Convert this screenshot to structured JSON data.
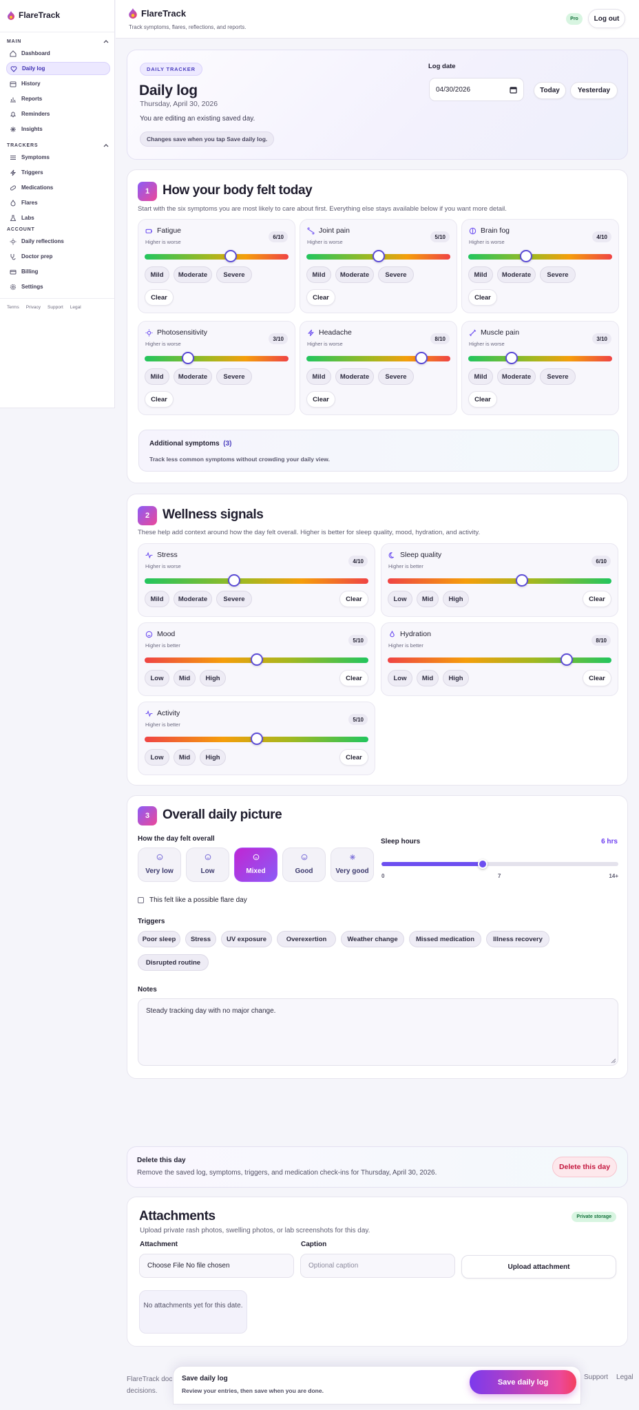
{
  "app": {
    "name": "FlareTrack",
    "tagline": "Track symptoms, flares, reflections, and reports.",
    "plan_badge": "Pro",
    "logout_label": "Log out"
  },
  "sidebar": {
    "sections": [
      {
        "label": "MAIN",
        "items": [
          {
            "label": "Dashboard",
            "icon": "home-icon"
          },
          {
            "label": "Daily log",
            "icon": "heart-icon",
            "active": true
          },
          {
            "label": "History",
            "icon": "calendar-icon"
          },
          {
            "label": "Reports",
            "icon": "chart-icon"
          },
          {
            "label": "Reminders",
            "icon": "bell-icon"
          },
          {
            "label": "Insights",
            "icon": "sparkle-icon"
          }
        ]
      },
      {
        "label": "TRACKERS",
        "items": [
          {
            "label": "Symptoms",
            "icon": "list-icon"
          },
          {
            "label": "Triggers",
            "icon": "bolt-icon"
          },
          {
            "label": "Medications",
            "icon": "pill-icon"
          },
          {
            "label": "Flares",
            "icon": "flame-icon"
          },
          {
            "label": "Labs",
            "icon": "flask-icon"
          }
        ]
      },
      {
        "label": "ACCOUNT",
        "items": [
          {
            "label": "Daily reflections",
            "icon": "sun-icon"
          },
          {
            "label": "Doctor prep",
            "icon": "stethoscope-icon"
          },
          {
            "label": "Billing",
            "icon": "card-icon"
          },
          {
            "label": "Settings",
            "icon": "gear-icon"
          }
        ]
      }
    ],
    "footer_links": [
      "Terms",
      "Privacy",
      "Support",
      "Legal"
    ]
  },
  "hero": {
    "tag": "DAILY TRACKER",
    "title": "Daily log",
    "date": "Thursday, April 30, 2026",
    "editing": "You are editing an existing saved day.",
    "note": "Changes save when you tap Save daily log.",
    "log_date_label": "Log date",
    "log_date_value": "04/30/2026",
    "today_label": "Today",
    "yesterday_label": "Yesterday"
  },
  "section1": {
    "num": "1",
    "title": "How your body felt today",
    "desc": "Start with the six symptoms you are most likely to care about first. Everything else stays available below if you want more detail.",
    "symptoms": [
      {
        "name": "Fatigue",
        "hint": "Higher is worse",
        "score": "6/10",
        "value": 6,
        "icon": "battery-icon"
      },
      {
        "name": "Joint pain",
        "hint": "Higher is worse",
        "score": "5/10",
        "value": 5,
        "icon": "bone-icon"
      },
      {
        "name": "Brain fog",
        "hint": "Higher is worse",
        "score": "4/10",
        "value": 4,
        "icon": "brain-icon"
      },
      {
        "name": "Photosensitivity",
        "hint": "Higher is worse",
        "score": "3/10",
        "value": 3,
        "icon": "sun-icon"
      },
      {
        "name": "Headache",
        "hint": "Higher is worse",
        "score": "8/10",
        "value": 8,
        "icon": "bolt-icon"
      },
      {
        "name": "Muscle pain",
        "hint": "Higher is worse",
        "score": "3/10",
        "value": 3,
        "icon": "dumbbell-icon"
      }
    ],
    "chip_labels": [
      "Mild",
      "Moderate",
      "Severe"
    ],
    "clear_label": "Clear",
    "additional": {
      "title": "Additional symptoms",
      "count": "(3)",
      "desc": "Track less common symptoms without crowding your daily view."
    }
  },
  "section2": {
    "num": "2",
    "title": "Wellness signals",
    "desc": "These help add context around how the day felt overall. Higher is better for sleep quality, mood, hydration, and activity.",
    "signals": [
      {
        "name": "Stress",
        "hint": "Higher is worse",
        "score": "4/10",
        "value": 4,
        "icon": "pulse-icon",
        "scale": "worse",
        "chips": [
          "Mild",
          "Moderate",
          "Severe"
        ]
      },
      {
        "name": "Sleep quality",
        "hint": "Higher is better",
        "score": "6/10",
        "value": 6,
        "icon": "moon-icon",
        "scale": "better",
        "chips": [
          "Low",
          "Mid",
          "High"
        ]
      },
      {
        "name": "Mood",
        "hint": "Higher is better",
        "score": "5/10",
        "value": 5,
        "icon": "smile-icon",
        "scale": "better",
        "chips": [
          "Low",
          "Mid",
          "High"
        ]
      },
      {
        "name": "Hydration",
        "hint": "Higher is better",
        "score": "8/10",
        "value": 8,
        "icon": "drop-icon",
        "scale": "better",
        "chips": [
          "Low",
          "Mid",
          "High"
        ]
      },
      {
        "name": "Activity",
        "hint": "Higher is better",
        "score": "5/10",
        "value": 5,
        "icon": "pulse-icon",
        "scale": "better",
        "chips": [
          "Low",
          "Mid",
          "High"
        ]
      }
    ],
    "clear_label": "Clear"
  },
  "section3": {
    "num": "3",
    "title": "Overall daily picture",
    "overall_label": "How the day felt overall",
    "options": [
      {
        "label": "Very low",
        "icon": "frown-icon"
      },
      {
        "label": "Low",
        "icon": "meh-icon"
      },
      {
        "label": "Mixed",
        "icon": "neutral-icon",
        "selected": true
      },
      {
        "label": "Good",
        "icon": "smile-icon"
      },
      {
        "label": "Very good",
        "icon": "sparkle-icon"
      }
    ],
    "sleep": {
      "label": "Sleep hours",
      "value_label": "6 hrs",
      "value": 6,
      "max": 14,
      "ticks": [
        "0",
        "7",
        "14+"
      ]
    },
    "flare_label": "This felt like a possible flare day",
    "triggers_label": "Triggers",
    "triggers": [
      "Poor sleep",
      "Stress",
      "UV exposure",
      "Overexertion",
      "Weather change",
      "Missed medication",
      "Illness recovery",
      "Disrupted routine"
    ],
    "notes_label": "Notes",
    "notes_value": "Steady tracking day with no major change."
  },
  "delete": {
    "title": "Delete this day",
    "desc": "Remove the saved log, symptoms, triggers, and medication check-ins for Thursday, April 30, 2026.",
    "button": "Delete this day"
  },
  "attachments": {
    "title": "Attachments",
    "badge": "Private storage",
    "desc": "Upload private rash photos, swelling photos, or lab screenshots for this day.",
    "attachment_label": "Attachment",
    "file_value": "Choose File No file chosen",
    "caption_label": "Caption",
    "caption_placeholder": "Optional caption",
    "upload_label": "Upload attachment",
    "empty": "No attachments yet for this date."
  },
  "footer": {
    "left_line1": "FlareTrack doc",
    "left_line2": "decisions.",
    "links": [
      "Support",
      "Legal"
    ]
  },
  "savebar": {
    "title": "Save daily log",
    "desc": "Review your entries, then save when you are done.",
    "button": "Save daily log"
  },
  "colors": {
    "accent": "#5b4bd6",
    "brand_gradient_start": "#8b5cf6",
    "brand_gradient_end": "#ec4899",
    "danger": "#c4173e",
    "success_bg": "#d8f5e1"
  }
}
